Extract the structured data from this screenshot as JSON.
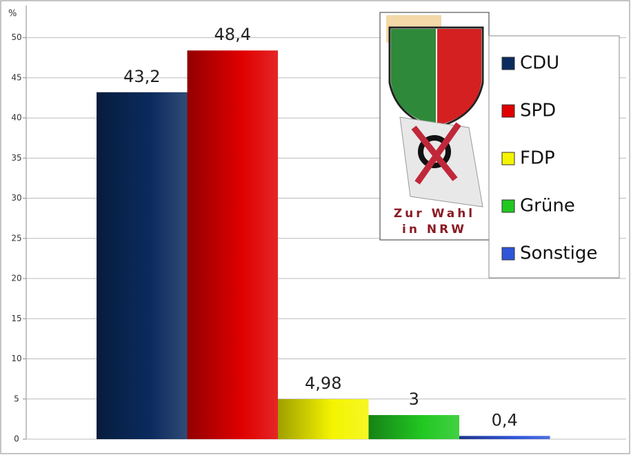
{
  "chart_data": {
    "type": "bar",
    "y_label": "%",
    "categories": [
      "CDU",
      "SPD",
      "FDP",
      "Grüne",
      "Sonstige"
    ],
    "values": [
      43.2,
      48.4,
      4.98,
      3,
      0.4
    ],
    "value_labels": [
      "43,2",
      "48,4",
      "4,98",
      "3",
      "0,4"
    ],
    "colors": [
      "#0b2b5e",
      "#e00000",
      "#f4f400",
      "#22c822",
      "#2f55d8"
    ],
    "ylim": [
      0,
      54
    ],
    "yticks": [
      0,
      5,
      10,
      15,
      20,
      25,
      30,
      35,
      40,
      45,
      50
    ],
    "grid": true,
    "annotations": [
      "Zur Wahl",
      "in NRW"
    ]
  }
}
